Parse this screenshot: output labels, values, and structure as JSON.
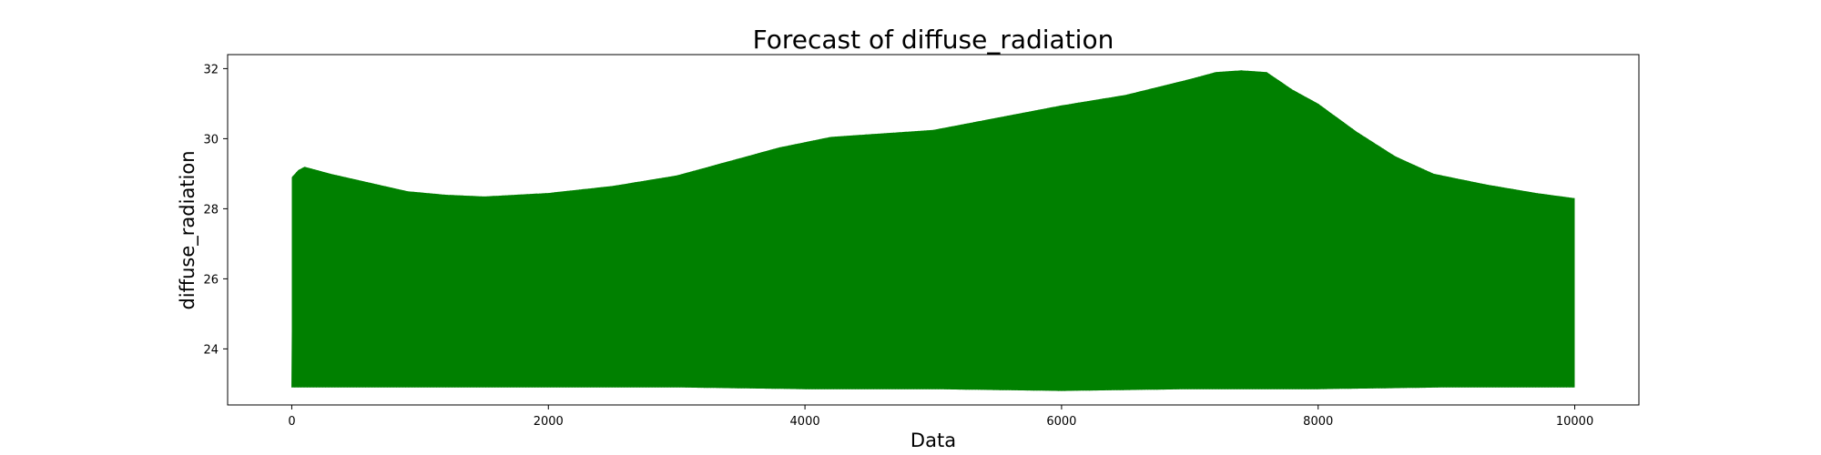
{
  "chart_data": {
    "type": "line",
    "title": "Forecast of diffuse_radiation",
    "xlabel": "Data",
    "ylabel": "diffuse_radiation",
    "xlim": [
      -500,
      10500
    ],
    "ylim": [
      22.4,
      32.4
    ],
    "xticks": [
      0,
      2000,
      4000,
      6000,
      8000,
      10000
    ],
    "yticks": [
      24,
      26,
      28,
      30,
      32
    ],
    "grid": false,
    "color": "#008000",
    "series": [
      {
        "oscillation_period": 24,
        "upper_envelope": {
          "x": [
            0,
            50,
            100,
            300,
            600,
            900,
            1200,
            1500,
            2000,
            2500,
            3000,
            3500,
            3800,
            4200,
            4600,
            5000,
            5500,
            6000,
            6500,
            7000,
            7200,
            7400,
            7600,
            7800,
            8000,
            8300,
            8600,
            8900,
            9300,
            9700,
            10000
          ],
          "y": [
            28.9,
            29.1,
            29.2,
            29.0,
            28.75,
            28.5,
            28.4,
            28.35,
            28.45,
            28.65,
            28.95,
            29.45,
            29.75,
            30.05,
            30.15,
            30.25,
            30.6,
            30.95,
            31.25,
            31.7,
            31.9,
            31.95,
            31.9,
            31.4,
            31.0,
            30.2,
            29.5,
            29.0,
            28.7,
            28.45,
            28.3
          ]
        },
        "lower_envelope": {
          "x": [
            0,
            1000,
            2000,
            3000,
            4000,
            5000,
            6000,
            7000,
            8000,
            9000,
            10000
          ],
          "y": [
            22.9,
            22.9,
            22.9,
            22.9,
            22.85,
            22.85,
            22.8,
            22.85,
            22.85,
            22.9,
            22.9
          ]
        }
      }
    ]
  }
}
